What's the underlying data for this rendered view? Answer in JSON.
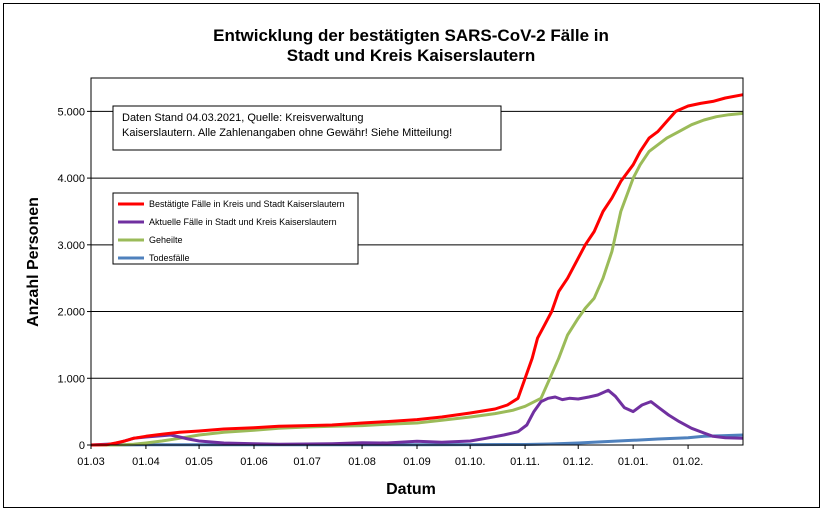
{
  "chart_data": {
    "type": "line",
    "title_line1": "Entwicklung der bestätigten SARS-CoV-2 Fälle in",
    "title_line2": "Stadt und Kreis Kaiserslautern",
    "xlabel": "Datum",
    "ylabel": "Anzahl Personen",
    "x_type": "date",
    "x_range": [
      "2020-03-01",
      "2021-03-04"
    ],
    "ylim": [
      0,
      5500
    ],
    "grid": "horizontal",
    "legend_position": "left",
    "annotation_line1": "Daten Stand 04.03.2021, Quelle: Kreisverwaltung",
    "annotation_line2": "Kaiserslautern. Alle Zahlenangaben ohne Gewähr! Siehe Mitteilung!",
    "x_ticks": [
      {
        "date": "2020-03-01",
        "label": "01.03"
      },
      {
        "date": "2020-04-01",
        "label": "01.04"
      },
      {
        "date": "2020-05-01",
        "label": "01.05"
      },
      {
        "date": "2020-06-01",
        "label": "01.06"
      },
      {
        "date": "2020-07-01",
        "label": "01.07"
      },
      {
        "date": "2020-08-01",
        "label": "01.08"
      },
      {
        "date": "2020-09-01",
        "label": "01.09"
      },
      {
        "date": "2020-10-01",
        "label": "01.10."
      },
      {
        "date": "2020-11-01",
        "label": "01.11."
      },
      {
        "date": "2020-12-01",
        "label": "01.12."
      },
      {
        "date": "2021-01-01",
        "label": "01.01."
      },
      {
        "date": "2021-02-01",
        "label": "01.02."
      }
    ],
    "y_ticks": [
      {
        "value": 0,
        "label": "0"
      },
      {
        "value": 1000,
        "label": "1.000"
      },
      {
        "value": 2000,
        "label": "2.000"
      },
      {
        "value": 3000,
        "label": "3.000"
      },
      {
        "value": 4000,
        "label": "4.000"
      },
      {
        "value": 5000,
        "label": "5.000"
      }
    ],
    "series": [
      {
        "name": "Bestätigte Fälle in Kreis und Stadt Kaiserslautern",
        "color": "#ff0000",
        "x": [
          "2020-03-01",
          "2020-03-10",
          "2020-03-15",
          "2020-03-20",
          "2020-03-25",
          "2020-04-01",
          "2020-04-10",
          "2020-04-20",
          "2020-05-01",
          "2020-05-15",
          "2020-06-01",
          "2020-06-15",
          "2020-07-01",
          "2020-07-15",
          "2020-08-01",
          "2020-08-15",
          "2020-09-01",
          "2020-09-15",
          "2020-10-01",
          "2020-10-15",
          "2020-10-22",
          "2020-10-28",
          "2020-11-01",
          "2020-11-05",
          "2020-11-08",
          "2020-11-12",
          "2020-11-16",
          "2020-11-20",
          "2020-11-25",
          "2020-12-01",
          "2020-12-05",
          "2020-12-10",
          "2020-12-15",
          "2020-12-20",
          "2020-12-25",
          "2021-01-01",
          "2021-01-05",
          "2021-01-10",
          "2021-01-15",
          "2021-01-20",
          "2021-01-25",
          "2021-02-01",
          "2021-02-08",
          "2021-02-15",
          "2021-02-22",
          "2021-03-04"
        ],
        "values": [
          0,
          5,
          30,
          60,
          100,
          130,
          160,
          190,
          210,
          240,
          260,
          280,
          290,
          300,
          330,
          350,
          380,
          420,
          480,
          540,
          600,
          700,
          1000,
          1300,
          1600,
          1800,
          2000,
          2300,
          2500,
          2800,
          3000,
          3200,
          3500,
          3700,
          3950,
          4200,
          4400,
          4600,
          4700,
          4850,
          5000,
          5080,
          5120,
          5150,
          5200,
          5250
        ]
      },
      {
        "name": "Aktuelle Fälle in Stadt und Kreis Kaiserslautern",
        "color": "#7030a0",
        "x": [
          "2020-03-01",
          "2020-03-15",
          "2020-03-25",
          "2020-04-01",
          "2020-04-15",
          "2020-04-25",
          "2020-05-01",
          "2020-05-15",
          "2020-06-01",
          "2020-06-15",
          "2020-07-01",
          "2020-07-15",
          "2020-08-01",
          "2020-08-15",
          "2020-09-01",
          "2020-09-15",
          "2020-10-01",
          "2020-10-10",
          "2020-10-20",
          "2020-10-28",
          "2020-11-02",
          "2020-11-06",
          "2020-11-10",
          "2020-11-14",
          "2020-11-18",
          "2020-11-22",
          "2020-11-26",
          "2020-12-01",
          "2020-12-07",
          "2020-12-12",
          "2020-12-18",
          "2020-12-22",
          "2020-12-27",
          "2021-01-01",
          "2021-01-06",
          "2021-01-11",
          "2021-01-16",
          "2021-01-21",
          "2021-01-27",
          "2021-02-03",
          "2021-02-10",
          "2021-02-15",
          "2021-02-22",
          "2021-03-04"
        ],
        "values": [
          0,
          20,
          100,
          120,
          150,
          90,
          60,
          30,
          20,
          10,
          15,
          20,
          35,
          30,
          55,
          40,
          60,
          100,
          150,
          200,
          300,
          500,
          650,
          700,
          720,
          680,
          700,
          690,
          720,
          750,
          820,
          730,
          560,
          500,
          600,
          650,
          550,
          450,
          350,
          250,
          180,
          130,
          110,
          100
        ]
      },
      {
        "name": "Geheilte",
        "color": "#9bbb59",
        "x": [
          "2020-03-01",
          "2020-03-15",
          "2020-03-25",
          "2020-04-01",
          "2020-04-10",
          "2020-04-20",
          "2020-05-01",
          "2020-05-15",
          "2020-06-01",
          "2020-06-15",
          "2020-07-01",
          "2020-07-15",
          "2020-08-01",
          "2020-08-15",
          "2020-09-01",
          "2020-09-15",
          "2020-10-01",
          "2020-10-15",
          "2020-10-25",
          "2020-11-01",
          "2020-11-10",
          "2020-11-15",
          "2020-11-20",
          "2020-11-25",
          "2020-12-01",
          "2020-12-05",
          "2020-12-10",
          "2020-12-15",
          "2020-12-20",
          "2020-12-25",
          "2021-01-01",
          "2021-01-05",
          "2021-01-10",
          "2021-01-15",
          "2021-01-20",
          "2021-01-27",
          "2021-02-03",
          "2021-02-10",
          "2021-02-17",
          "2021-02-24",
          "2021-03-04"
        ],
        "values": [
          0,
          0,
          10,
          30,
          60,
          100,
          150,
          190,
          220,
          250,
          270,
          280,
          290,
          310,
          330,
          370,
          420,
          470,
          520,
          580,
          700,
          1000,
          1300,
          1650,
          1900,
          2050,
          2200,
          2500,
          2900,
          3500,
          4000,
          4200,
          4400,
          4500,
          4600,
          4700,
          4800,
          4870,
          4920,
          4950,
          4970
        ]
      },
      {
        "name": "Todesfälle",
        "color": "#4f81bd",
        "x": [
          "2020-03-01",
          "2020-04-01",
          "2020-05-01",
          "2020-06-01",
          "2020-07-01",
          "2020-08-01",
          "2020-09-01",
          "2020-10-01",
          "2020-11-01",
          "2020-11-15",
          "2020-12-01",
          "2020-12-15",
          "2021-01-01",
          "2021-01-15",
          "2021-02-01",
          "2021-02-10",
          "2021-02-20",
          "2021-03-04"
        ],
        "values": [
          0,
          3,
          5,
          5,
          5,
          5,
          5,
          6,
          8,
          15,
          30,
          50,
          70,
          90,
          110,
          130,
          140,
          150
        ]
      }
    ]
  }
}
